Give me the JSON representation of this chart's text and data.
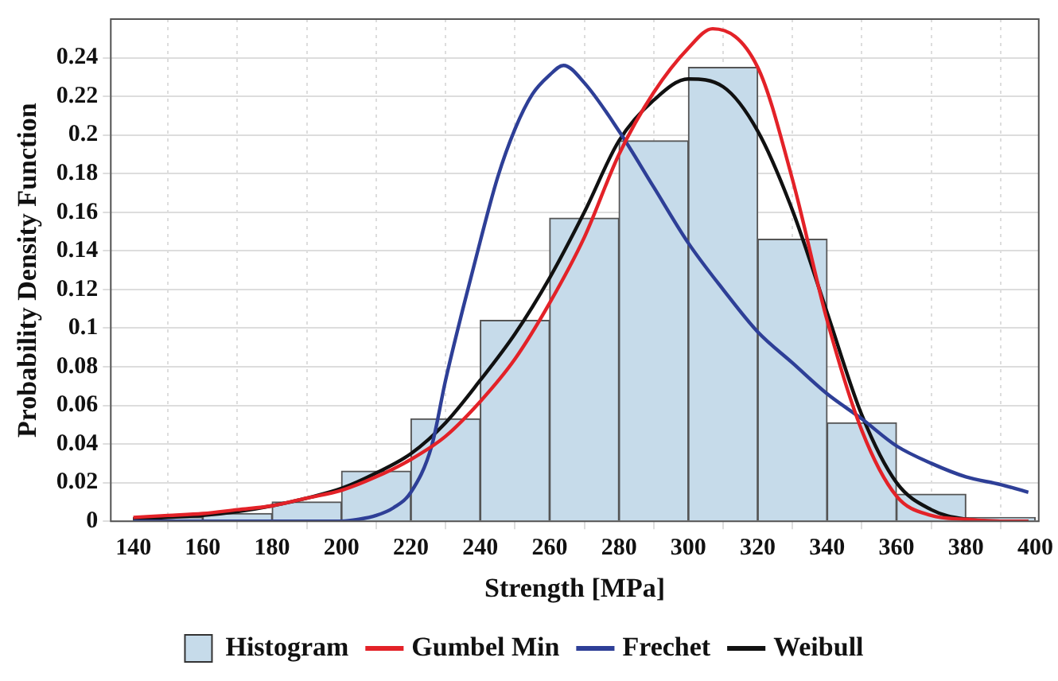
{
  "chart_data": {
    "type": "histogram",
    "xlabel": "Strength [MPa]",
    "ylabel": "Probability Density Function",
    "xlim": [
      133.5,
      401
    ],
    "xticks": [
      140,
      160,
      180,
      200,
      220,
      240,
      260,
      280,
      300,
      320,
      340,
      360,
      380,
      400
    ],
    "ylim": [
      0,
      0.26
    ],
    "yticks": [
      0,
      0.02,
      0.04,
      0.06,
      0.08,
      0.1,
      0.12,
      0.14,
      0.16,
      0.18,
      0.2,
      0.22,
      0.24
    ],
    "grid": true,
    "legend": "bottom",
    "marker": "none",
    "line_style": "solid",
    "series": [
      {
        "name": "Histogram",
        "color": "#c6dbea",
        "bins": [
          140,
          160,
          180,
          200,
          220,
          240,
          260,
          280,
          300,
          320,
          340,
          360,
          380,
          400
        ],
        "values": [
          0.002,
          0.004,
          0.01,
          0.026,
          0.053,
          0.104,
          0.157,
          0.197,
          0.235,
          0.146,
          0.051,
          0.014,
          0.002
        ]
      },
      {
        "type": "line",
        "name": "Gumbel Min",
        "color": "#e32228",
        "x": [
          140,
          150,
          160,
          170,
          180,
          190,
          200,
          210,
          220,
          230,
          240,
          250,
          260,
          270,
          280,
          290,
          300,
          307,
          320,
          330,
          340,
          350,
          360,
          370,
          380,
          390,
          398
        ],
        "values": [
          0.002,
          0.003,
          0.004,
          0.006,
          0.008,
          0.012,
          0.016,
          0.023,
          0.032,
          0.044,
          0.062,
          0.084,
          0.113,
          0.147,
          0.19,
          0.222,
          0.245,
          0.255,
          0.235,
          0.177,
          0.104,
          0.047,
          0.013,
          0.003,
          0.001,
          0,
          0
        ]
      },
      {
        "type": "line",
        "name": "Frechet",
        "color": "#2e3f97",
        "x": [
          140,
          160,
          180,
          200,
          205,
          210,
          215,
          220,
          226,
          230,
          235,
          240,
          245,
          250,
          255,
          260,
          264,
          270,
          280,
          290,
          300,
          310,
          320,
          330,
          340,
          350,
          360,
          370,
          380,
          390,
          398
        ],
        "values": [
          0,
          0,
          0,
          0,
          0.001,
          0.003,
          0.007,
          0.015,
          0.039,
          0.073,
          0.11,
          0.145,
          0.178,
          0.203,
          0.221,
          0.231,
          0.236,
          0.227,
          0.202,
          0.173,
          0.144,
          0.12,
          0.098,
          0.082,
          0.066,
          0.053,
          0.039,
          0.03,
          0.023,
          0.019,
          0.015
        ]
      },
      {
        "type": "line",
        "name": "Weibull",
        "color": "#111111",
        "x": [
          140,
          150,
          160,
          170,
          180,
          190,
          200,
          210,
          220,
          230,
          240,
          250,
          260,
          270,
          280,
          290,
          300,
          310,
          320,
          330,
          340,
          350,
          360,
          370,
          380,
          390,
          398
        ],
        "values": [
          0.001,
          0.002,
          0.003,
          0.005,
          0.008,
          0.012,
          0.017,
          0.025,
          0.035,
          0.051,
          0.073,
          0.097,
          0.126,
          0.16,
          0.197,
          0.218,
          0.229,
          0.225,
          0.202,
          0.161,
          0.108,
          0.055,
          0.02,
          0.006,
          0.001,
          0,
          0
        ]
      }
    ]
  }
}
